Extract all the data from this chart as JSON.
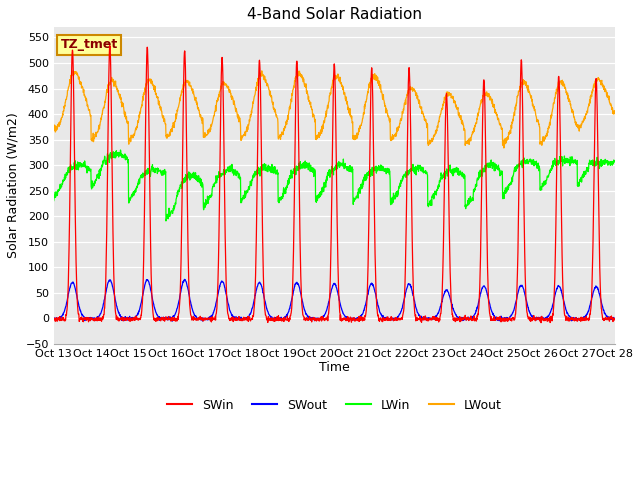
{
  "title": "4-Band Solar Radiation",
  "ylabel": "Solar Radiation (W/m2)",
  "xlabel": "Time",
  "ylim": [
    -50,
    570
  ],
  "yticks": [
    -50,
    0,
    50,
    100,
    150,
    200,
    250,
    300,
    350,
    400,
    450,
    500,
    550
  ],
  "xtick_labels": [
    "Oct 13",
    "Oct 14",
    "Oct 15",
    "Oct 16",
    "Oct 17",
    "Oct 18",
    "Oct 19",
    "Oct 20",
    "Oct 21",
    "Oct 22",
    "Oct 23",
    "Oct 24",
    "Oct 25",
    "Oct 26",
    "Oct 27",
    "Oct 28"
  ],
  "colors": {
    "SWin": "#ff0000",
    "SWout": "#0000ff",
    "LWin": "#00ff00",
    "LWout": "#ffa500"
  },
  "label_box": "TZ_tmet",
  "label_box_bg": "#ffff99",
  "label_box_edge": "#cc8800",
  "background_color": "#e8e8e8",
  "grid_color": "#ffffff",
  "title_fontsize": 11,
  "axis_fontsize": 9,
  "tick_fontsize": 8,
  "n_days": 15,
  "points_per_day": 144,
  "SWin_peaks": [
    525,
    535,
    530,
    525,
    510,
    505,
    505,
    500,
    490,
    490,
    440,
    470,
    505,
    475,
    470
  ],
  "SWout_peaks": [
    70,
    75,
    75,
    75,
    72,
    70,
    70,
    68,
    68,
    67,
    55,
    63,
    65,
    63,
    62
  ],
  "LWin_values": [
    275,
    300,
    270,
    228,
    258,
    268,
    268,
    270,
    268,
    265,
    260,
    255,
    280,
    295,
    305
  ],
  "LWin_peak_add": [
    25,
    20,
    20,
    52,
    32,
    27,
    32,
    30,
    25,
    28,
    30,
    45,
    28,
    15,
    0
  ],
  "LWout_night": [
    365,
    347,
    345,
    352,
    352,
    350,
    350,
    350,
    348,
    348,
    340,
    340,
    340,
    340,
    372
  ],
  "LWout_peaks": [
    480,
    465,
    465,
    463,
    460,
    478,
    478,
    473,
    475,
    450,
    440,
    440,
    462,
    462,
    468
  ]
}
